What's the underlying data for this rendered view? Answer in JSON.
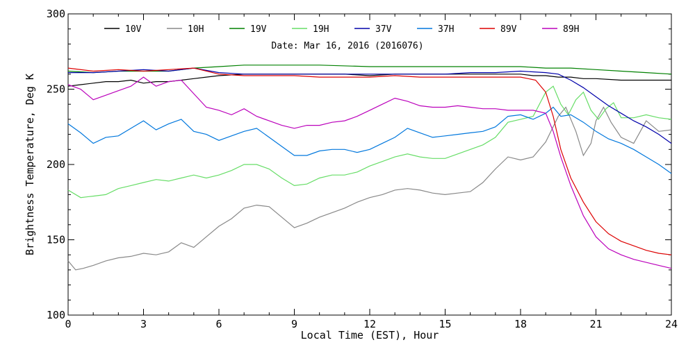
{
  "chart_data": {
    "type": "line",
    "title": "",
    "annotation": "Date: Mar 16, 2016 (2016076)",
    "xlabel": "Local Time (EST), Hour",
    "ylabel": "Brightness Temperature, Deg K",
    "xlim": [
      0,
      24
    ],
    "ylim": [
      100,
      300
    ],
    "xticks": [
      0,
      3,
      6,
      9,
      12,
      15,
      18,
      21,
      24
    ],
    "yticks": [
      100,
      150,
      200,
      250,
      300
    ],
    "grid": false,
    "legend_position": "top",
    "series": [
      {
        "name": "10V",
        "color": "#000000",
        "x": [
          0,
          0.5,
          1,
          1.5,
          2,
          2.5,
          3,
          3.5,
          4,
          4.5,
          5,
          5.5,
          6,
          7,
          8,
          9,
          10,
          11,
          12,
          13,
          14,
          15,
          16,
          17,
          18,
          18.5,
          19,
          19.5,
          20,
          20.5,
          21,
          22,
          23,
          24
        ],
        "y": [
          252,
          253,
          254,
          255,
          255,
          256,
          254,
          255,
          255,
          256,
          257,
          258,
          259,
          260,
          260,
          260,
          260,
          260,
          259,
          260,
          260,
          260,
          260,
          260,
          260,
          259,
          259,
          258,
          258,
          257,
          257,
          256,
          256,
          256
        ]
      },
      {
        "name": "10H",
        "color": "#888888",
        "x": [
          0,
          0.3,
          0.6,
          1,
          1.5,
          2,
          2.5,
          3,
          3.5,
          4,
          4.5,
          5,
          5.5,
          6,
          6.5,
          7,
          7.5,
          8,
          8.5,
          9,
          9.5,
          10,
          10.5,
          11,
          11.5,
          12,
          12.5,
          13,
          13.5,
          14,
          14.5,
          15,
          15.5,
          16,
          16.5,
          17,
          17.5,
          18,
          18.5,
          19,
          19.5,
          19.8,
          20.2,
          20.5,
          20.8,
          21,
          21.3,
          21.6,
          22,
          22.5,
          23,
          23.5,
          24
        ],
        "y": [
          136,
          130,
          131,
          133,
          136,
          138,
          139,
          141,
          140,
          142,
          148,
          145,
          152,
          159,
          164,
          171,
          173,
          172,
          165,
          158,
          161,
          165,
          168,
          171,
          175,
          178,
          180,
          183,
          184,
          183,
          181,
          180,
          181,
          182,
          188,
          197,
          205,
          203,
          205,
          215,
          232,
          238,
          222,
          206,
          214,
          229,
          238,
          228,
          218,
          214,
          229,
          222,
          223
        ]
      },
      {
        "name": "19V",
        "color": "#008000",
        "x": [
          0,
          1,
          2,
          3,
          4,
          5,
          6,
          7,
          8,
          9,
          10,
          12,
          15,
          18,
          19,
          20,
          21,
          22,
          23,
          24
        ],
        "y": [
          262,
          261,
          262,
          262,
          262,
          264,
          265,
          266,
          266,
          266,
          266,
          265,
          265,
          265,
          264,
          264,
          263,
          262,
          261,
          260
        ]
      },
      {
        "name": "19H",
        "color": "#66dd66",
        "x": [
          0,
          0.5,
          1,
          1.5,
          2,
          2.5,
          3,
          3.5,
          4,
          4.5,
          5,
          5.5,
          6,
          6.5,
          7,
          7.5,
          8,
          8.5,
          9,
          9.5,
          10,
          10.5,
          11,
          11.5,
          12,
          12.5,
          13,
          13.5,
          14,
          14.5,
          15,
          15.5,
          16,
          16.5,
          17,
          17.5,
          18,
          18.5,
          19,
          19.3,
          19.6,
          19.9,
          20.2,
          20.5,
          20.8,
          21.1,
          21.4,
          21.7,
          22,
          22.5,
          23,
          23.5,
          24
        ],
        "y": [
          183,
          178,
          179,
          180,
          184,
          186,
          188,
          190,
          189,
          191,
          193,
          191,
          193,
          196,
          200,
          200,
          197,
          191,
          186,
          187,
          191,
          193,
          193,
          195,
          199,
          202,
          205,
          207,
          205,
          204,
          204,
          207,
          210,
          213,
          218,
          228,
          230,
          232,
          248,
          252,
          240,
          233,
          243,
          248,
          236,
          230,
          237,
          241,
          231,
          231,
          233,
          231,
          230
        ]
      },
      {
        "name": "37V",
        "color": "#0000aa",
        "x": [
          0,
          1,
          2,
          3,
          4,
          5,
          6,
          7,
          8,
          9,
          10,
          11,
          12,
          13,
          14,
          15,
          16,
          17,
          18,
          19,
          19.5,
          20,
          20.5,
          21,
          21.5,
          22,
          22.5,
          23,
          23.5,
          24
        ],
        "y": [
          261,
          261,
          262,
          263,
          262,
          264,
          261,
          260,
          260,
          260,
          260,
          260,
          260,
          260,
          260,
          260,
          261,
          261,
          262,
          261,
          260,
          256,
          251,
          245,
          239,
          234,
          229,
          225,
          220,
          214
        ]
      },
      {
        "name": "37H",
        "color": "#0077dd",
        "x": [
          0,
          0.5,
          1,
          1.5,
          2,
          2.5,
          3,
          3.5,
          4,
          4.5,
          5,
          5.5,
          6,
          6.5,
          7,
          7.5,
          8,
          8.5,
          9,
          9.5,
          10,
          10.5,
          11,
          11.5,
          12,
          12.5,
          13,
          13.5,
          14,
          14.5,
          15,
          15.5,
          16,
          16.5,
          17,
          17.5,
          18,
          18.5,
          19,
          19.3,
          19.6,
          20,
          20.5,
          21,
          21.5,
          22,
          22.5,
          23,
          23.5,
          24
        ],
        "y": [
          227,
          221,
          214,
          218,
          219,
          224,
          229,
          223,
          227,
          230,
          222,
          220,
          216,
          219,
          222,
          224,
          218,
          212,
          206,
          206,
          209,
          210,
          210,
          208,
          210,
          214,
          218,
          224,
          221,
          218,
          219,
          220,
          221,
          222,
          225,
          232,
          233,
          230,
          234,
          238,
          232,
          233,
          228,
          222,
          217,
          214,
          210,
          205,
          200,
          194
        ]
      },
      {
        "name": "89V",
        "color": "#dd0000",
        "x": [
          0,
          1,
          2,
          3,
          4,
          5,
          6,
          7,
          8,
          9,
          10,
          11,
          12,
          13,
          14,
          15,
          16,
          17,
          18,
          18.6,
          19,
          19.3,
          19.6,
          20,
          20.5,
          21,
          21.5,
          22,
          22.5,
          23,
          23.5,
          24
        ],
        "y": [
          264,
          262,
          263,
          262,
          263,
          264,
          260,
          259,
          259,
          259,
          258,
          258,
          258,
          259,
          258,
          258,
          258,
          258,
          258,
          256,
          248,
          232,
          210,
          191,
          175,
          162,
          154,
          149,
          146,
          143,
          141,
          140
        ]
      },
      {
        "name": "89H",
        "color": "#bb00bb",
        "x": [
          0,
          0.5,
          1,
          1.5,
          2,
          2.5,
          3,
          3.5,
          4,
          4.5,
          5,
          5.5,
          6,
          6.5,
          7,
          7.5,
          8,
          8.5,
          9,
          9.5,
          10,
          10.5,
          11,
          11.5,
          12,
          12.5,
          13,
          13.5,
          14,
          14.5,
          15,
          15.5,
          16,
          16.5,
          17,
          17.5,
          18,
          18.5,
          19,
          19.3,
          19.6,
          20,
          20.5,
          21,
          21.5,
          22,
          22.5,
          23,
          23.5,
          24
        ],
        "y": [
          253,
          250,
          243,
          246,
          249,
          252,
          258,
          252,
          255,
          256,
          247,
          238,
          236,
          233,
          237,
          232,
          229,
          226,
          224,
          226,
          226,
          228,
          229,
          232,
          236,
          240,
          244,
          242,
          239,
          238,
          238,
          239,
          238,
          237,
          237,
          236,
          236,
          236,
          234,
          222,
          205,
          186,
          166,
          152,
          144,
          140,
          137,
          135,
          133,
          131
        ]
      }
    ]
  }
}
